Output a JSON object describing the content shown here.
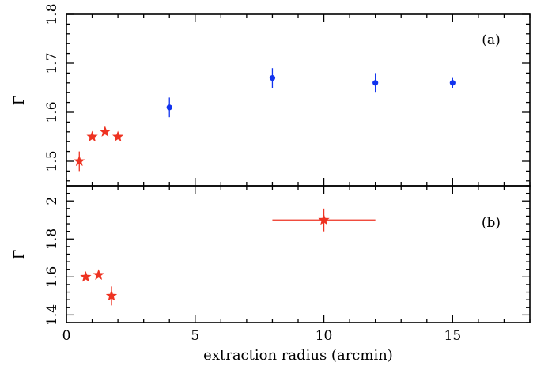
{
  "chart_data": [
    {
      "type": "scatter",
      "panel_label": "(a)",
      "ylabel": "Γ",
      "xlim": [
        0,
        18
      ],
      "ylim": [
        1.45,
        1.8
      ],
      "yticks": [
        1.5,
        1.6,
        1.7,
        1.8
      ],
      "ytick_labels": [
        "1.5",
        "1.6",
        "1.7",
        "1.8"
      ],
      "series": [
        {
          "marker": "star",
          "color": "#ee3322",
          "points": [
            {
              "x": 0.5,
              "y": 1.5,
              "yerr": 0.02
            },
            {
              "x": 1.0,
              "y": 1.55,
              "yerr": 0.0
            },
            {
              "x": 1.5,
              "y": 1.56,
              "yerr": 0.0
            },
            {
              "x": 2.0,
              "y": 1.55,
              "yerr": 0.0
            }
          ]
        },
        {
          "marker": "circle",
          "color": "#1133ee",
          "points": [
            {
              "x": 4.0,
              "y": 1.61,
              "yerr": 0.02
            },
            {
              "x": 8.0,
              "y": 1.67,
              "yerr": 0.02
            },
            {
              "x": 12.0,
              "y": 1.66,
              "yerr": 0.02
            },
            {
              "x": 15.0,
              "y": 1.66,
              "yerr": 0.01
            }
          ]
        }
      ]
    },
    {
      "type": "scatter",
      "panel_label": "(b)",
      "ylabel": "Γ",
      "xlabel": "extraction radius (arcmin)",
      "xlim": [
        0,
        18
      ],
      "ylim": [
        1.36,
        2.08
      ],
      "xticks": [
        0,
        5,
        10,
        15
      ],
      "xtick_labels": [
        "0",
        "5",
        "10",
        "15"
      ],
      "yticks": [
        1.4,
        1.6,
        1.8,
        2.0
      ],
      "ytick_labels": [
        "1.4",
        "1.6",
        "1.8",
        "2"
      ],
      "series": [
        {
          "marker": "star",
          "color": "#ee3322",
          "points": [
            {
              "x": 0.75,
              "y": 1.6,
              "yerr": 0.0,
              "xerr": 0.0
            },
            {
              "x": 1.25,
              "y": 1.61,
              "yerr": 0.0,
              "xerr": 0.0
            },
            {
              "x": 1.75,
              "y": 1.5,
              "yerr": 0.05,
              "xerr": 0.0
            },
            {
              "x": 10.0,
              "y": 1.9,
              "yerr": 0.06,
              "xerr": 2.0
            }
          ]
        }
      ]
    }
  ]
}
